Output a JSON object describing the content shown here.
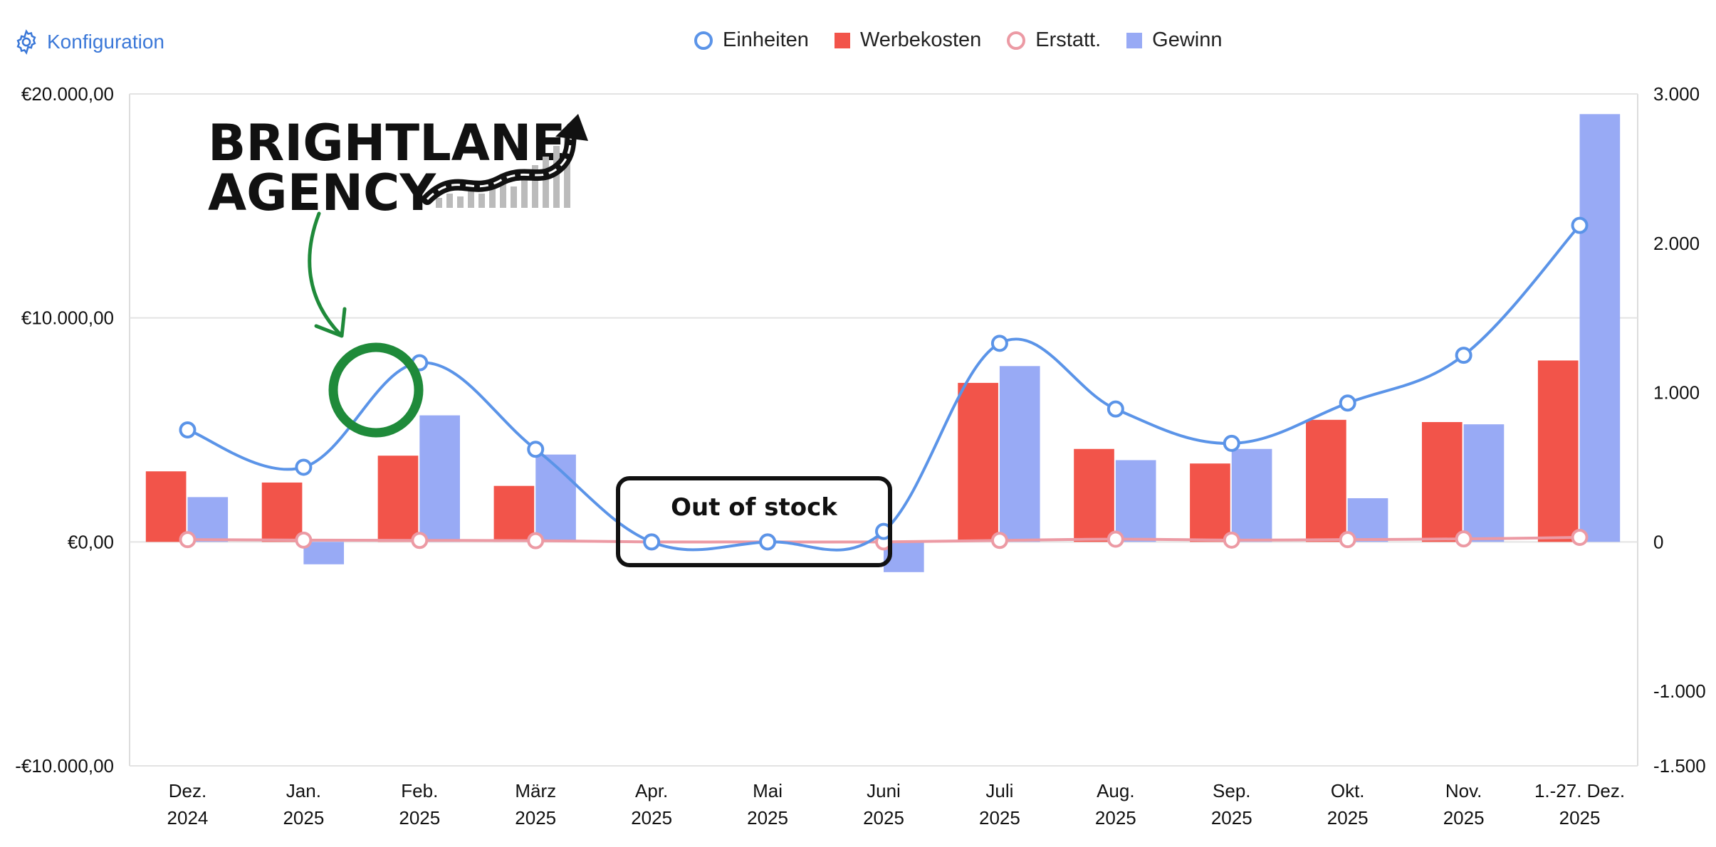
{
  "toolbar": {
    "config_label": "Konfiguration",
    "config_icon": "gear-icon"
  },
  "logo": {
    "line1": "BRIGHTLANE",
    "line2": "AGENCY"
  },
  "callout": {
    "text": "Out of stock"
  },
  "colors": {
    "einheiten": "#5b94e8",
    "werbekosten": "#f2544a",
    "erstatt": "#ec9aa4",
    "gewinn": "#98aaf5",
    "annotation_green": "#1f8a3a"
  },
  "chart_data": {
    "type": "bar",
    "categories": [
      [
        "Dez.",
        "2024"
      ],
      [
        "Jan.",
        "2025"
      ],
      [
        "Feb.",
        "2025"
      ],
      [
        "März",
        "2025"
      ],
      [
        "Apr.",
        "2025"
      ],
      [
        "Mai",
        "2025"
      ],
      [
        "Juni",
        "2025"
      ],
      [
        "Juli",
        "2025"
      ],
      [
        "Aug.",
        "2025"
      ],
      [
        "Sep.",
        "2025"
      ],
      [
        "Okt.",
        "2025"
      ],
      [
        "Nov.",
        "2025"
      ],
      [
        "1.-27. Dez.",
        "2025"
      ]
    ],
    "y_left": {
      "min": -10000,
      "max": 20000,
      "ticks": [
        {
          "value": 20000,
          "label": "€20.000,00"
        },
        {
          "value": 10000,
          "label": "€10.000,00"
        },
        {
          "value": 0,
          "label": "€0,00"
        },
        {
          "value": -10000,
          "label": "-€10.000,00"
        }
      ]
    },
    "y_right": {
      "min": -1500,
      "max": 3000,
      "ticks": [
        {
          "value": 3000,
          "label": "3.000"
        },
        {
          "value": 2000,
          "label": "2.000"
        },
        {
          "value": 1000,
          "label": "1.000"
        },
        {
          "value": 0,
          "label": "0"
        },
        {
          "value": -1000,
          "label": "-1.000"
        },
        {
          "value": -1500,
          "label": "-1.500"
        }
      ]
    },
    "series": [
      {
        "name": "Einheiten",
        "kind": "line",
        "axis": "right",
        "marker": "hollow-circle",
        "values": [
          750,
          500,
          1200,
          620,
          0,
          0,
          70,
          1330,
          890,
          660,
          930,
          1250,
          2120
        ]
      },
      {
        "name": "Werbekosten",
        "kind": "bar",
        "axis": "left",
        "values": [
          3150,
          2650,
          3850,
          2500,
          0,
          0,
          0,
          7100,
          4150,
          3500,
          5450,
          5350,
          8100
        ]
      },
      {
        "name": "Erstatt.",
        "kind": "line",
        "axis": "right",
        "marker": "hollow-circle",
        "values": [
          15,
          12,
          10,
          8,
          0,
          0,
          0,
          10,
          18,
          12,
          15,
          20,
          30
        ]
      },
      {
        "name": "Gewinn",
        "kind": "bar",
        "axis": "left",
        "values": [
          2000,
          -1000,
          5650,
          3900,
          0,
          0,
          -1350,
          7850,
          3650,
          4150,
          1950,
          5250,
          19100
        ]
      }
    ],
    "grid": true,
    "legend_position": "top"
  }
}
